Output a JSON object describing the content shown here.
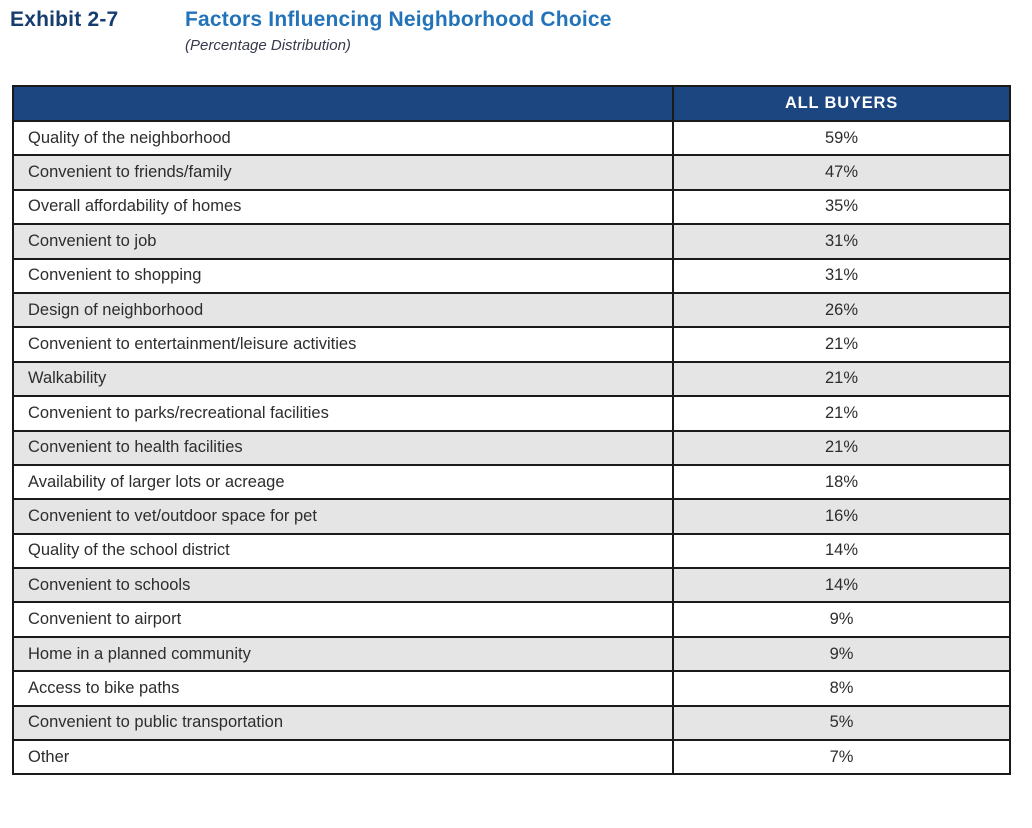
{
  "exhibit": {
    "label": "Exhibit 2-7",
    "title": "Factors Influencing Neighborhood Choice",
    "subtitle": "(Percentage Distribution)"
  },
  "table": {
    "factor_header": "",
    "value_header": "ALL BUYERS",
    "rows": [
      {
        "factor": "Quality of the neighborhood",
        "value": "59%"
      },
      {
        "factor": "Convenient to friends/family",
        "value": "47%"
      },
      {
        "factor": "Overall affordability of homes",
        "value": "35%"
      },
      {
        "factor": "Convenient to job",
        "value": "31%"
      },
      {
        "factor": "Convenient to shopping",
        "value": "31%"
      },
      {
        "factor": "Design of neighborhood",
        "value": "26%"
      },
      {
        "factor": "Convenient to entertainment/leisure activities",
        "value": "21%"
      },
      {
        "factor": "Walkability",
        "value": "21%"
      },
      {
        "factor": "Convenient to parks/recreational facilities",
        "value": "21%"
      },
      {
        "factor": "Convenient to health facilities",
        "value": "21%"
      },
      {
        "factor": "Availability of larger lots or acreage",
        "value": "18%"
      },
      {
        "factor": "Convenient to vet/outdoor space for pet",
        "value": "16%"
      },
      {
        "factor": "Quality of the school district",
        "value": "14%"
      },
      {
        "factor": "Convenient to schools",
        "value": "14%"
      },
      {
        "factor": "Convenient to airport",
        "value": "9%"
      },
      {
        "factor": "Home in a planned community",
        "value": "9%"
      },
      {
        "factor": "Access to bike paths",
        "value": "8%"
      },
      {
        "factor": "Convenient to public transportation",
        "value": "5%"
      },
      {
        "factor": "Other",
        "value": "7%"
      }
    ]
  },
  "colors": {
    "header_background": "#1c4680",
    "header_text": "#ffffff",
    "exhibit_label": "#153d6f",
    "title_blue": "#2273b9",
    "alt_row_background": "#e5e5e5",
    "border": "#1a1a1a",
    "body_text": "#2d2d2d"
  }
}
